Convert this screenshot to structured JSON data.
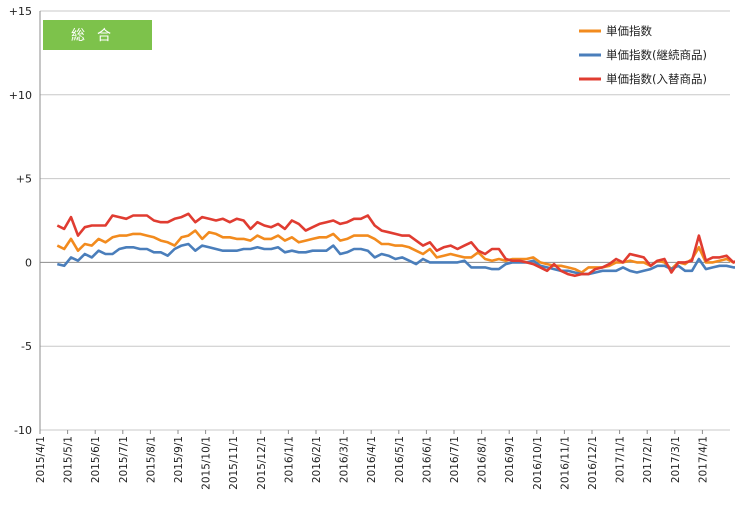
{
  "chart_data": {
    "type": "line",
    "title_badge": "総合",
    "title_badge_color": "#7dc24b",
    "y_ticks": [
      "+15",
      "+10",
      "+5",
      "0",
      "-5",
      "-10"
    ],
    "y_tick_values": [
      15,
      10,
      5,
      0,
      -5,
      -10
    ],
    "ylim": [
      -10,
      15
    ],
    "grid": "horizontal",
    "legend_position": "top-right",
    "x_tick_labels": [
      "2015/4/1",
      "2015/5/1",
      "2015/6/1",
      "2015/7/1",
      "2015/8/1",
      "2015/9/1",
      "2015/10/1",
      "2015/11/1",
      "2015/12/1",
      "2016/1/1",
      "2016/2/1",
      "2016/3/1",
      "2016/4/1",
      "2016/5/1",
      "2016/6/1",
      "2016/7/1",
      "2016/8/1",
      "2016/9/1",
      "2016/10/1",
      "2016/11/1",
      "2016/12/1",
      "2017/1/1",
      "2017/2/1",
      "2017/3/1",
      "2017/4/1"
    ],
    "points_per_month": 4,
    "series": [
      {
        "name": "単価指数",
        "color": "#f28b1e",
        "values": [
          1.0,
          0.8,
          1.4,
          0.7,
          1.1,
          1.0,
          1.4,
          1.2,
          1.5,
          1.6,
          1.6,
          1.7,
          1.7,
          1.6,
          1.5,
          1.3,
          1.2,
          1.0,
          1.5,
          1.6,
          1.9,
          1.4,
          1.8,
          1.7,
          1.5,
          1.5,
          1.4,
          1.4,
          1.3,
          1.6,
          1.4,
          1.4,
          1.6,
          1.3,
          1.5,
          1.2,
          1.3,
          1.4,
          1.5,
          1.5,
          1.7,
          1.3,
          1.4,
          1.6,
          1.6,
          1.6,
          1.4,
          1.1,
          1.1,
          1.0,
          1.0,
          0.9,
          0.7,
          0.5,
          0.8,
          0.3,
          0.4,
          0.5,
          0.4,
          0.3,
          0.3,
          0.6,
          0.2,
          0.1,
          0.2,
          0.1,
          0.2,
          0.2,
          0.2,
          0.3,
          0.0,
          -0.1,
          -0.2,
          -0.2,
          -0.3,
          -0.4,
          -0.6,
          -0.3,
          -0.3,
          -0.3,
          -0.2,
          0.0,
          0.0,
          0.1,
          0.0,
          0.0,
          -0.2,
          0.1,
          0.0,
          -0.4,
          0.0,
          -0.1,
          0.2,
          0.9,
          0.0,
          0.0,
          0.1,
          0.2,
          0.0,
          0.2,
          0.0,
          0.4,
          0.5,
          0.7,
          0.4,
          0.2,
          0.4,
          0.5
        ]
      },
      {
        "name": "単価指数(継続商品)",
        "color": "#4a7ebb",
        "values": [
          -0.1,
          -0.2,
          0.3,
          0.1,
          0.5,
          0.3,
          0.7,
          0.5,
          0.5,
          0.8,
          0.9,
          0.9,
          0.8,
          0.8,
          0.6,
          0.6,
          0.4,
          0.8,
          1.0,
          1.1,
          0.7,
          1.0,
          0.9,
          0.8,
          0.7,
          0.7,
          0.7,
          0.8,
          0.8,
          0.9,
          0.8,
          0.8,
          0.9,
          0.6,
          0.7,
          0.6,
          0.6,
          0.7,
          0.7,
          0.7,
          1.0,
          0.5,
          0.6,
          0.8,
          0.8,
          0.7,
          0.3,
          0.5,
          0.4,
          0.2,
          0.3,
          0.1,
          -0.1,
          0.2,
          0.0,
          0.0,
          0.0,
          0.0,
          0.0,
          0.1,
          -0.3,
          -0.3,
          -0.3,
          -0.4,
          -0.4,
          -0.1,
          0.0,
          0.0,
          0.0,
          0.1,
          -0.2,
          -0.3,
          -0.4,
          -0.5,
          -0.5,
          -0.6,
          -0.7,
          -0.7,
          -0.6,
          -0.5,
          -0.5,
          -0.5,
          -0.3,
          -0.5,
          -0.6,
          -0.5,
          -0.4,
          -0.2,
          -0.2,
          -0.4,
          -0.2,
          -0.5,
          -0.5,
          0.2,
          -0.4,
          -0.3,
          -0.2,
          -0.2,
          -0.3,
          -0.3,
          -0.3,
          -0.1,
          -0.2,
          0.0,
          -0.4,
          -0.6,
          -0.3,
          -0.3
        ]
      },
      {
        "name": "単価指数(入替商品)",
        "color": "#e03c31",
        "values": [
          2.2,
          2.0,
          2.7,
          1.6,
          2.1,
          2.2,
          2.2,
          2.2,
          2.8,
          2.7,
          2.6,
          2.8,
          2.8,
          2.8,
          2.5,
          2.4,
          2.4,
          2.6,
          2.7,
          2.9,
          2.4,
          2.7,
          2.6,
          2.5,
          2.6,
          2.4,
          2.6,
          2.5,
          2.0,
          2.4,
          2.2,
          2.1,
          2.3,
          2.0,
          2.5,
          2.3,
          1.9,
          2.1,
          2.3,
          2.4,
          2.5,
          2.3,
          2.4,
          2.6,
          2.6,
          2.8,
          2.2,
          1.9,
          1.8,
          1.7,
          1.6,
          1.6,
          1.3,
          1.0,
          1.2,
          0.7,
          0.9,
          1.0,
          0.8,
          1.0,
          1.2,
          0.7,
          0.5,
          0.8,
          0.8,
          0.2,
          0.1,
          0.1,
          0.0,
          -0.1,
          -0.3,
          -0.5,
          -0.1,
          -0.5,
          -0.7,
          -0.8,
          -0.7,
          -0.7,
          -0.4,
          -0.3,
          -0.1,
          0.2,
          0.0,
          0.5,
          0.4,
          0.3,
          -0.2,
          0.1,
          0.2,
          -0.6,
          0.0,
          0.0,
          0.1,
          1.6,
          0.1,
          0.3,
          0.3,
          0.4,
          0.0,
          0.2,
          0.0,
          0.7,
          0.9,
          1.5,
          1.4,
          1.5,
          1.8,
          1.5
        ]
      }
    ]
  }
}
